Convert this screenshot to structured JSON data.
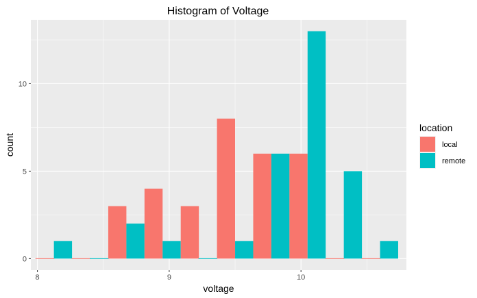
{
  "chart_data": {
    "type": "bar",
    "title": "Histogram of Voltage",
    "xlabel": "voltage",
    "ylabel": "count",
    "xlim": [
      7.95,
      10.8
    ],
    "ylim": [
      -0.65,
      13.65
    ],
    "x_ticks": [
      "8",
      "9",
      "10"
    ],
    "x_tick_values": [
      8,
      9,
      10
    ],
    "y_ticks": [
      "0",
      "5",
      "10"
    ],
    "y_tick_values": [
      0,
      5,
      10
    ],
    "grid": true,
    "legend": {
      "title": "location",
      "placement": "right"
    },
    "bin_centers": [
      8.125,
      8.4,
      8.675,
      8.95,
      9.225,
      9.5,
      9.775,
      10.05,
      10.325,
      10.6
    ],
    "bar_width": 0.1375,
    "series": [
      {
        "name": "local",
        "color": "#F8766D",
        "values": [
          0,
          0,
          3,
          4,
          3,
          8,
          6,
          6,
          0,
          0
        ]
      },
      {
        "name": "remote",
        "color": "#00BFC4",
        "values": [
          1,
          0,
          2,
          1,
          0,
          1,
          6,
          13,
          5,
          1
        ]
      }
    ]
  }
}
